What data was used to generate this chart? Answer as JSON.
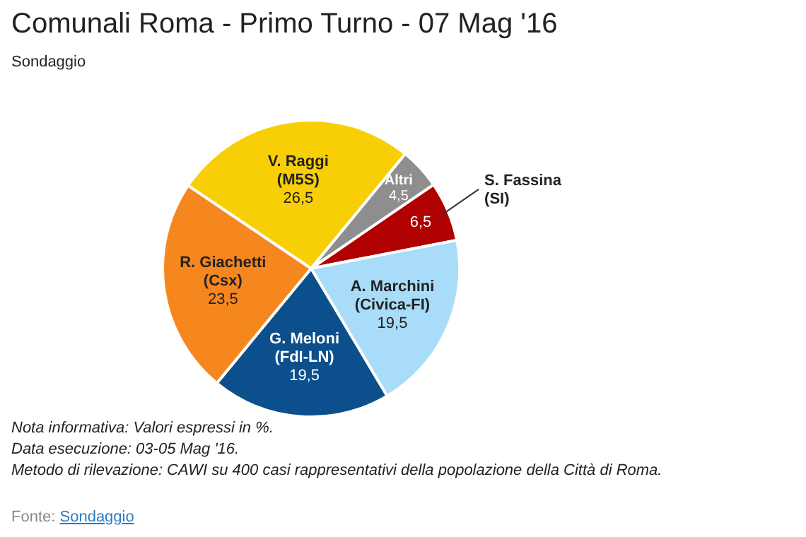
{
  "chart_data": {
    "type": "pie",
    "title": "Comunali Roma - Primo Turno - 07 Mag '16",
    "subtitle": "Sondaggio",
    "categories": [
      "V. Raggi\n(M5S)",
      "Altri",
      "S. Fassina\n(SI)",
      "A. Marchini\n(Civica-FI)",
      "G. Meloni\n(FdI-LN)",
      "R. Giachetti\n(Csx)"
    ],
    "values": [
      26.5,
      4.5,
      6.5,
      19.5,
      19.5,
      23.5
    ],
    "value_labels": [
      "26,5",
      "4,5",
      "6,5",
      "19,5",
      "19,5",
      "23,5"
    ],
    "colors": [
      "#f8cf06",
      "#8e8e8e",
      "#b00000",
      "#a8dcf8",
      "#0b4f8c",
      "#f6871f"
    ],
    "legend": false,
    "annotations": [
      "Nota informativa: Valori espressi in %.",
      "Data esecuzione: 03-05 Mag '16.",
      "Metodo di rilevazione: CAWI su 400 casi rappresentativi della popolazione della Città di Roma.",
      "Fonte: Sondaggio"
    ]
  }
}
